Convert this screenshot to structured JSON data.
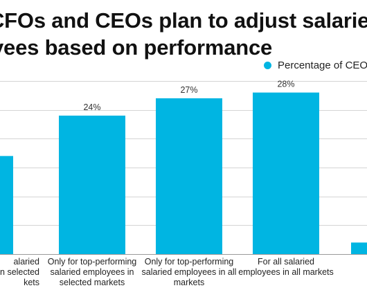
{
  "title": {
    "line1": "CFOs and CEOs plan to adjust salaries",
    "line2": "yees based on performance"
  },
  "legend": {
    "label": "Percentage of CEO",
    "color": "#00b5e2"
  },
  "chart_data": {
    "type": "bar",
    "title": "CFOs and CEOs plan to adjust salaries / yees based on performance",
    "categories": [
      "alaried\nn selected\nkets",
      "Only for top-performing\nsalaried employees in\nselected markets",
      "Only for top-performing\nsalaried employees in all\nmarkets",
      "For all salaried\nemployees in all markets",
      ""
    ],
    "series": [
      {
        "name": "Percentage of CEO",
        "values": [
          17,
          24,
          27,
          28,
          2
        ]
      }
    ],
    "data_labels": [
      "%",
      "24%",
      "27%",
      "28%",
      ""
    ],
    "ylim": [
      0,
      30
    ],
    "grid": true,
    "legend_position": "top-right",
    "bar_color": "#00b5e2"
  }
}
